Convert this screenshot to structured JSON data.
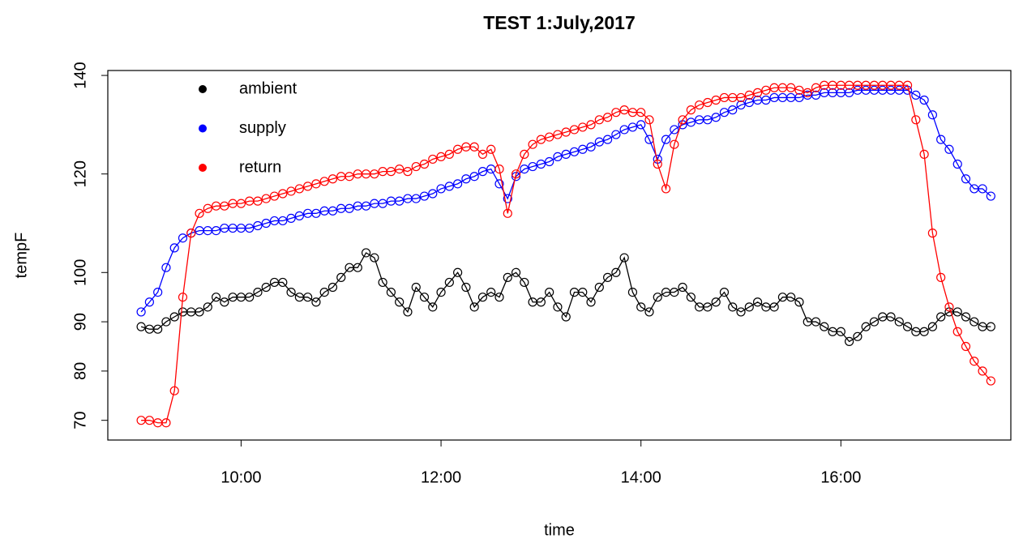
{
  "chart_data": {
    "type": "line",
    "title": "TEST 1:July,2017",
    "xlabel": "time",
    "ylabel": "tempF",
    "x": [
      "09:00",
      "09:05",
      "09:10",
      "09:15",
      "09:20",
      "09:25",
      "09:30",
      "09:35",
      "09:40",
      "09:45",
      "09:50",
      "09:55",
      "10:00",
      "10:05",
      "10:10",
      "10:15",
      "10:20",
      "10:25",
      "10:30",
      "10:35",
      "10:40",
      "10:45",
      "10:50",
      "10:55",
      "11:00",
      "11:05",
      "11:10",
      "11:15",
      "11:20",
      "11:25",
      "11:30",
      "11:35",
      "11:40",
      "11:45",
      "11:50",
      "11:55",
      "12:00",
      "12:05",
      "12:10",
      "12:15",
      "12:20",
      "12:25",
      "12:30",
      "12:35",
      "12:40",
      "12:45",
      "12:50",
      "12:55",
      "13:00",
      "13:05",
      "13:10",
      "13:15",
      "13:20",
      "13:25",
      "13:30",
      "13:35",
      "13:40",
      "13:45",
      "13:50",
      "13:55",
      "14:00",
      "14:05",
      "14:10",
      "14:15",
      "14:20",
      "14:25",
      "14:30",
      "14:35",
      "14:40",
      "14:45",
      "14:50",
      "14:55",
      "15:00",
      "15:05",
      "15:10",
      "15:15",
      "15:20",
      "15:25",
      "15:30",
      "15:35",
      "15:40",
      "15:45",
      "15:50",
      "15:55",
      "16:00",
      "16:05",
      "16:10",
      "16:15",
      "16:20",
      "16:25",
      "16:30",
      "16:35",
      "16:40",
      "16:45",
      "16:50",
      "16:55",
      "17:00",
      "17:05",
      "17:10",
      "17:15",
      "17:20",
      "17:25",
      "17:30"
    ],
    "series": [
      {
        "name": "ambient",
        "color": "#000000",
        "values": [
          89,
          88.5,
          88.5,
          90,
          91,
          92,
          92,
          92,
          93,
          95,
          94,
          95,
          95,
          95,
          96,
          97,
          98,
          98,
          96,
          95,
          95,
          94,
          96,
          97,
          99,
          101,
          101,
          104,
          103,
          98,
          96,
          94,
          92,
          97,
          95,
          93,
          96,
          98,
          100,
          97,
          93,
          95,
          96,
          95,
          99,
          100,
          98,
          94,
          94,
          96,
          93,
          91,
          96,
          96,
          94,
          97,
          99,
          100,
          103,
          96,
          93,
          92,
          95,
          96,
          96,
          97,
          95,
          93,
          93,
          94,
          96,
          93,
          92,
          93,
          94,
          93,
          93,
          95,
          95,
          94,
          90,
          90,
          89,
          88,
          88,
          86,
          87,
          89,
          90,
          91,
          91,
          90,
          89,
          88,
          88,
          89,
          91,
          92,
          92,
          91,
          90,
          89,
          89
        ]
      },
      {
        "name": "supply",
        "color": "#0000ff",
        "values": [
          92,
          94,
          96,
          101,
          105,
          107,
          108,
          108.5,
          108.5,
          108.5,
          109,
          109,
          109,
          109,
          109.5,
          110,
          110.5,
          110.5,
          111,
          111.5,
          112,
          112,
          112.5,
          112.5,
          113,
          113,
          113.5,
          113.5,
          114,
          114,
          114.5,
          114.5,
          115,
          115,
          115.5,
          116,
          117,
          117.5,
          118,
          119,
          119.5,
          120.5,
          121,
          118,
          115,
          119.5,
          121,
          121.5,
          122,
          122.5,
          123.5,
          124,
          124.5,
          125,
          125.5,
          126.5,
          127,
          128,
          129,
          129.5,
          130,
          127,
          123,
          127,
          129,
          130,
          130.5,
          131,
          131,
          131.5,
          132.5,
          133,
          134,
          134.5,
          135,
          135,
          135.5,
          135.5,
          135.5,
          135.5,
          136,
          136,
          136.5,
          136.5,
          136.5,
          136.5,
          137,
          137,
          137,
          137,
          137,
          137,
          137,
          136,
          135,
          132,
          127,
          125,
          122,
          119,
          117,
          117,
          115.5
        ]
      },
      {
        "name": "return",
        "color": "#ff0000",
        "values": [
          70,
          70,
          69.5,
          69.5,
          76,
          95,
          108,
          112,
          113,
          113.5,
          113.5,
          114,
          114,
          114.5,
          114.5,
          115,
          115.5,
          116,
          116.5,
          117,
          117.5,
          118,
          118.5,
          119,
          119.5,
          119.5,
          120,
          120,
          120,
          120.5,
          120.5,
          121,
          120.5,
          121.5,
          122,
          123,
          123.5,
          124,
          125,
          125.5,
          125.5,
          124,
          125,
          121,
          112,
          120,
          124,
          126,
          127,
          127.5,
          128,
          128.5,
          129,
          129.5,
          130,
          131,
          131.5,
          132.5,
          133,
          132.5,
          132.5,
          131,
          122,
          117,
          126,
          131,
          133,
          134,
          134.5,
          135,
          135.5,
          135.5,
          135.5,
          136,
          136.5,
          137,
          137.5,
          137.5,
          137.5,
          137,
          136.5,
          137.5,
          138,
          138,
          138,
          138,
          138,
          138,
          138,
          138,
          138,
          138,
          138,
          131,
          124,
          108,
          99,
          93,
          88,
          85,
          82,
          80,
          78
        ]
      }
    ],
    "xlim": [
      "08:40",
      "17:42"
    ],
    "xticks": [
      "10:00",
      "12:00",
      "14:00",
      "16:00"
    ],
    "ylim": [
      66,
      141
    ],
    "yticks": [
      70,
      80,
      90,
      100,
      120,
      140
    ],
    "legend": "topleft"
  }
}
